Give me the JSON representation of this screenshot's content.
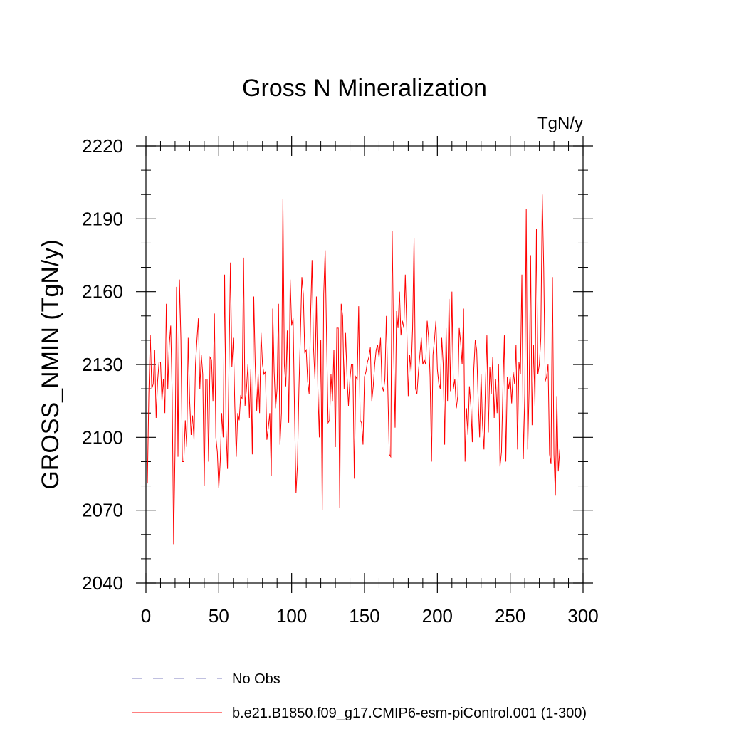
{
  "chart_data": {
    "type": "line",
    "title": "Gross N Mineralization",
    "units_label": "TgN/y",
    "ylabel": "GROSS_NMIN  (TgN/y)",
    "xlabel": "",
    "xlim": [
      0,
      300
    ],
    "ylim": [
      2040,
      2220
    ],
    "xticks": [
      0,
      50,
      100,
      150,
      200,
      250,
      300
    ],
    "yticks": [
      2040,
      2070,
      2100,
      2130,
      2160,
      2190,
      2220
    ],
    "xtick_labels": [
      "0",
      "50",
      "100",
      "150",
      "200",
      "250",
      "300"
    ],
    "ytick_labels": [
      "2040",
      "2070",
      "2100",
      "2130",
      "2160",
      "2190",
      "2220"
    ],
    "grid": false,
    "legend": [
      {
        "label": "No Obs",
        "color": "#8080c0",
        "style": "dashed"
      },
      {
        "label": "b.e21.B1850.f09_g17.CMIP6-esm-piControl.001 (1-300)",
        "color": "#ff0000",
        "style": "solid"
      }
    ],
    "series": [
      {
        "name": "b.e21.B1850.f09_g17.CMIP6-esm-piControl.001 (1-300)",
        "color": "#ff0000",
        "x_start": 1,
        "x_step": 1,
        "values": [
          2081,
          2118,
          2142,
          2120,
          2122,
          2136,
          2108,
          2123,
          2131,
          2131,
          2115,
          2124,
          2110,
          2155,
          2120,
          2138,
          2146,
          2118,
          2056,
          2095,
          2162,
          2092,
          2165,
          2140,
          2090,
          2090,
          2107,
          2096,
          2141,
          2115,
          2101,
          2109,
          2099,
          2130,
          2140,
          2149,
          2120,
          2134,
          2126,
          2080,
          2124,
          2124,
          2090,
          2133,
          2132,
          2115,
          2151,
          2100,
          2094,
          2079,
          2090,
          2110,
          2100,
          2167,
          2103,
          2087,
          2130,
          2172,
          2129,
          2141,
          2113,
          2092,
          2110,
          2107,
          2117,
          2116,
          2174,
          2113,
          2120,
          2130,
          2108,
          2128,
          2093,
          2158,
          2130,
          2111,
          2126,
          2110,
          2143,
          2130,
          2126,
          2127,
          2099,
          2104,
          2110,
          2084,
          2153,
          2127,
          2112,
          2120,
          2155,
          2097,
          2110,
          2198,
          2130,
          2121,
          2144,
          2106,
          2165,
          2146,
          2149,
          2110,
          2077,
          2089,
          2120,
          2142,
          2166,
          2159,
          2135,
          2136,
          2123,
          2118,
          2150,
          2173,
          2137,
          2124,
          2158,
          2120,
          2100,
          2140,
          2070,
          2159,
          2177,
          2140,
          2106,
          2107,
          2126,
          2115,
          2136,
          2096,
          2145,
          2145,
          2071,
          2155,
          2150,
          2120,
          2143,
          2125,
          2113,
          2124,
          2130,
          2130,
          2083,
          2125,
          2124,
          2154,
          2107,
          2106,
          2097,
          2125,
          2127,
          2131,
          2133,
          2137,
          2115,
          2121,
          2130,
          2136,
          2138,
          2133,
          2141,
          2121,
          2119,
          2124,
          2150,
          2120,
          2093,
          2092,
          2185,
          2136,
          2104,
          2152,
          2145,
          2160,
          2142,
          2148,
          2145,
          2167,
          2145,
          2117,
          2134,
          2127,
          2145,
          2182,
          2120,
          2118,
          2127,
          2134,
          2141,
          2130,
          2132,
          2130,
          2148,
          2141,
          2125,
          2090,
          2134,
          2140,
          2148,
          2128,
          2122,
          2120,
          2141,
          2130,
          2097,
          2145,
          2115,
          2157,
          2119,
          2160,
          2120,
          2124,
          2112,
          2117,
          2145,
          2139,
          2130,
          2153,
          2090,
          2112,
          2101,
          2121,
          2113,
          2098,
          2128,
          2140,
          2136,
          2116,
          2100,
          2126,
          2105,
          2095,
          2121,
          2142,
          2102,
          2129,
          2118,
          2133,
          2108,
          2124,
          2110,
          2130,
          2088,
          2094,
          2120,
          2142,
          2090,
          2125,
          2120,
          2125,
          2114,
          2127,
          2122,
          2138,
          2095,
          2131,
          2126,
          2167,
          2091,
          2118,
          2194,
          2095,
          2120,
          2175,
          2105,
          2138,
          2113,
          2186,
          2126,
          2130,
          2141,
          2200,
          2170,
          2123,
          2125,
          2130,
          2093,
          2089,
          2166,
          2093,
          2076,
          2117,
          2086,
          2095
        ]
      }
    ]
  }
}
